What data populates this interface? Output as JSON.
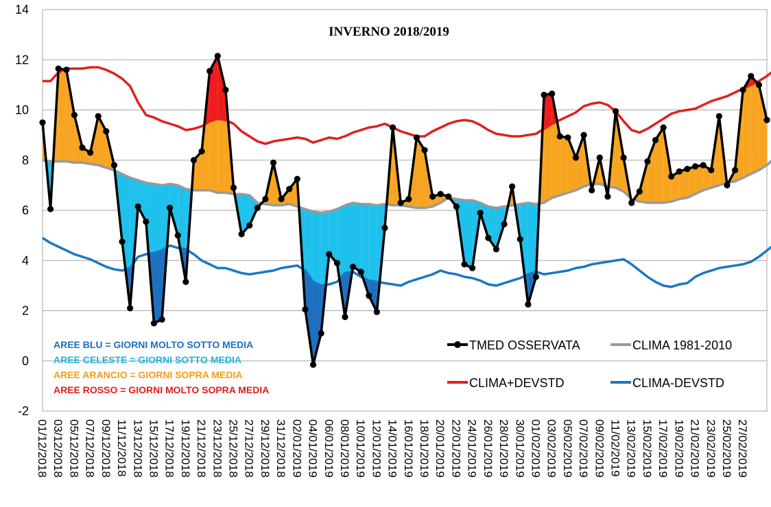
{
  "chart_data": {
    "type": "line",
    "title": "INVERNO 2018/2019",
    "ylim": [
      -2,
      14
    ],
    "y_ticks": [
      -2,
      0,
      2,
      4,
      6,
      8,
      10,
      12,
      14
    ],
    "grid": "horizontal",
    "x_tick_labels": [
      "01/12/2018",
      "03/12/2018",
      "05/12/2018",
      "07/12/2018",
      "09/12/2018",
      "11/12/2018",
      "13/12/2018",
      "15/12/2018",
      "17/12/2018",
      "19/12/2018",
      "21/12/2018",
      "23/12/2018",
      "25/12/2018",
      "27/12/2018",
      "29/12/2018",
      "31/12/2018",
      "02/01/2019",
      "04/01/2019",
      "06/01/2019",
      "08/01/2019",
      "10/01/2019",
      "12/01/2019",
      "14/01/2019",
      "16/01/2019",
      "18/01/2019",
      "20/01/2019",
      "22/01/2019",
      "24/01/2019",
      "26/01/2019",
      "28/01/2019",
      "30/01/2019",
      "01/02/2019",
      "03/02/2019",
      "05/02/2019",
      "07/02/2019",
      "09/02/2019",
      "11/02/2019",
      "13/02/2019",
      "15/02/2019",
      "17/02/2019",
      "19/02/2019",
      "21/02/2019",
      "23/02/2019",
      "25/02/2019",
      "27/02/2019"
    ],
    "series": [
      {
        "name": "TMED OSSERVATA",
        "color": "#000000",
        "values": [
          9.5,
          6.05,
          11.65,
          11.6,
          9.8,
          8.5,
          8.3,
          9.75,
          9.15,
          7.8,
          4.75,
          2.1,
          6.15,
          5.55,
          1.5,
          1.65,
          6.1,
          5.0,
          3.15,
          8.0,
          8.35,
          11.55,
          12.15,
          10.8,
          6.9,
          5.05,
          5.4,
          6.1,
          6.45,
          7.9,
          6.45,
          6.85,
          7.25,
          2.05,
          -0.15,
          1.1,
          4.25,
          3.9,
          1.75,
          3.75,
          3.55,
          2.6,
          1.95,
          5.3,
          9.3,
          6.3,
          6.45,
          8.9,
          8.4,
          6.55,
          6.65,
          6.55,
          6.15,
          3.85,
          3.7,
          5.9,
          4.9,
          4.45,
          5.45,
          6.95,
          4.85,
          2.25,
          3.35,
          10.6,
          10.65,
          8.95,
          8.9,
          8.1,
          9.0,
          6.8,
          8.1,
          6.55,
          9.95,
          8.1,
          6.3,
          6.75,
          7.95,
          8.8,
          9.3,
          7.35,
          7.55,
          7.65,
          7.75,
          7.8,
          7.6,
          9.75,
          7.0,
          7.6,
          10.8,
          11.35,
          11.0,
          9.6
        ]
      },
      {
        "name": "CLIMA 1981-2010",
        "color": "#9a9a9a",
        "values": [
          8.0,
          7.95,
          7.95,
          7.95,
          7.9,
          7.9,
          7.85,
          7.8,
          7.7,
          7.6,
          7.45,
          7.3,
          7.2,
          7.1,
          7.05,
          7.0,
          7.05,
          7.0,
          6.85,
          6.8,
          6.8,
          6.8,
          6.7,
          6.7,
          6.65,
          6.65,
          6.6,
          6.3,
          6.25,
          6.2,
          6.2,
          6.25,
          6.15,
          6.05,
          5.95,
          5.9,
          5.95,
          6.05,
          6.2,
          6.3,
          6.25,
          6.25,
          6.2,
          6.25,
          6.2,
          6.2,
          6.15,
          6.1,
          6.1,
          6.15,
          6.3,
          6.5,
          6.45,
          6.4,
          6.4,
          6.3,
          6.15,
          6.1,
          6.15,
          6.2,
          6.25,
          6.3,
          6.25,
          6.3,
          6.5,
          6.6,
          6.7,
          6.8,
          6.95,
          7.05,
          7.05,
          6.95,
          6.9,
          6.75,
          6.45,
          6.35,
          6.3,
          6.3,
          6.3,
          6.35,
          6.45,
          6.5,
          6.65,
          6.8,
          6.9,
          7.0,
          7.1,
          7.15,
          7.3,
          7.45,
          7.6,
          7.8,
          8.1,
          8.4
        ]
      },
      {
        "name": "CLIMA+DEVSTD",
        "color": "#e02020",
        "values": [
          11.15,
          11.15,
          11.5,
          11.65,
          11.65,
          11.65,
          11.7,
          11.7,
          11.6,
          11.45,
          11.25,
          10.95,
          10.3,
          9.8,
          9.7,
          9.55,
          9.45,
          9.35,
          9.2,
          9.25,
          9.35,
          9.55,
          9.65,
          9.6,
          9.45,
          9.15,
          8.95,
          8.75,
          8.65,
          8.75,
          8.8,
          8.85,
          8.9,
          8.85,
          8.7,
          8.8,
          8.9,
          8.85,
          8.95,
          9.1,
          9.2,
          9.3,
          9.35,
          9.45,
          9.3,
          9.15,
          9.05,
          8.95,
          8.95,
          9.15,
          9.3,
          9.45,
          9.55,
          9.6,
          9.55,
          9.4,
          9.2,
          9.05,
          9.0,
          8.95,
          8.95,
          9.0,
          9.05,
          9.25,
          9.45,
          9.6,
          9.75,
          9.9,
          10.15,
          10.25,
          10.3,
          10.2,
          9.95,
          9.55,
          9.2,
          9.1,
          9.25,
          9.45,
          9.65,
          9.85,
          9.95,
          10.0,
          10.05,
          10.2,
          10.35,
          10.45,
          10.55,
          10.7,
          10.85,
          11.0,
          11.15,
          11.35,
          11.6,
          11.85
        ]
      },
      {
        "name": "CLIMA-DEVSTD",
        "color": "#1a78c2",
        "values": [
          4.9,
          4.7,
          4.55,
          4.4,
          4.25,
          4.15,
          4.05,
          3.9,
          3.75,
          3.65,
          3.6,
          3.7,
          4.15,
          4.25,
          4.3,
          4.4,
          4.6,
          4.5,
          4.45,
          4.25,
          4.0,
          3.85,
          3.7,
          3.7,
          3.6,
          3.5,
          3.45,
          3.5,
          3.55,
          3.6,
          3.7,
          3.75,
          3.8,
          3.6,
          3.15,
          3.0,
          3.05,
          3.15,
          3.5,
          3.55,
          3.35,
          3.2,
          3.15,
          3.1,
          3.05,
          3.0,
          3.15,
          3.25,
          3.35,
          3.45,
          3.6,
          3.5,
          3.45,
          3.35,
          3.3,
          3.2,
          3.05,
          3.0,
          3.1,
          3.2,
          3.3,
          3.45,
          3.55,
          3.45,
          3.5,
          3.55,
          3.6,
          3.7,
          3.75,
          3.85,
          3.9,
          3.95,
          4.0,
          4.05,
          3.85,
          3.6,
          3.35,
          3.15,
          3.0,
          2.95,
          3.05,
          3.1,
          3.35,
          3.5,
          3.6,
          3.7,
          3.75,
          3.8,
          3.85,
          3.95,
          4.15,
          4.4,
          4.65,
          4.9
        ]
      }
    ],
    "area_colors": {
      "very_below": "#1f6fbf",
      "below": "#1ec0ec",
      "above": "#f7a520",
      "very_above": "#ee1c1c"
    },
    "notes": [
      {
        "text": "AREE BLU = GIORNI MOLTO SOTTO MEDIA",
        "color": "#1a6fbf"
      },
      {
        "text": "AREE CELESTE = GIORNI SOTTO MEDIA",
        "color": "#19b5e0"
      },
      {
        "text": "AREE ARANCIO = GIORNI SOPRA MEDIA",
        "color": "#f29b12"
      },
      {
        "text": "AREE ROSSO = GIORNI MOLTO SOPRA MEDIA",
        "color": "#e41b1b"
      }
    ],
    "legend_position": "bottom-right"
  }
}
